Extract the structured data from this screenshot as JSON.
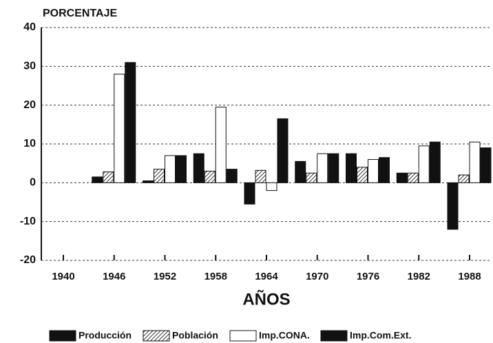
{
  "chart_data": {
    "type": "bar",
    "y_label": "PORCENTAJE",
    "x_label": "AÑOS",
    "categories": [
      "1940",
      "1946",
      "1952",
      "1958",
      "1964",
      "1970",
      "1976",
      "1982",
      "1988"
    ],
    "series": [
      {
        "name": "Producción",
        "color": "#111111",
        "values": [
          null,
          1.5,
          0.5,
          7.5,
          -5.5,
          5.5,
          7.5,
          2.5,
          -12
        ]
      },
      {
        "name": "Población",
        "color": "#444444",
        "pattern": "hatch",
        "values": [
          null,
          2.8,
          3.5,
          3,
          3.2,
          2.5,
          4,
          2.5,
          2
        ]
      },
      {
        "name": "Imp.CONA.",
        "color": "#ffffff",
        "values": [
          null,
          28,
          7,
          19.5,
          -2,
          7.5,
          6,
          9.5,
          10.5
        ]
      },
      {
        "name": "Imp.Com.Ext.",
        "color": "#111111",
        "values": [
          null,
          31,
          7,
          3.5,
          16.5,
          7.5,
          6.5,
          10.5,
          9
        ]
      }
    ],
    "ylim": [
      -20,
      40
    ],
    "yticks": [
      -20,
      -10,
      0,
      10,
      20,
      30,
      40
    ],
    "grid": true,
    "legend": "bottom"
  }
}
